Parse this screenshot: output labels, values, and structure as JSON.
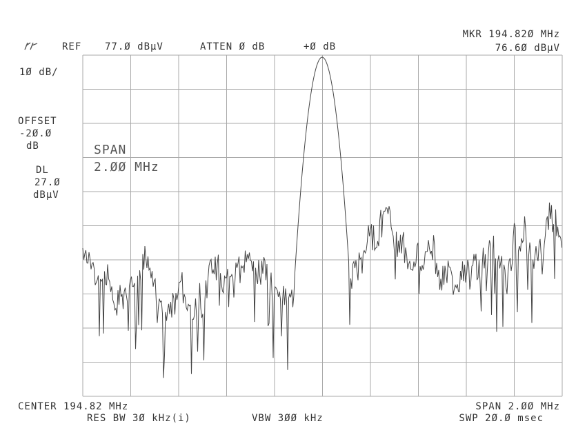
{
  "header": {
    "ref": "REF",
    "ref_level": "77.Ø dBµV",
    "atten": "ATTEN Ø dB",
    "offset_db": "+Ø dB",
    "marker": "MKR 194.82Ø MHz",
    "marker_level": "76.6Ø dBµV"
  },
  "left": {
    "scale": "1Ø dB/",
    "offset_label": "OFFSET",
    "offset_value": "-2Ø.Ø",
    "offset_unit": "dB",
    "dl_label": "DL",
    "dl_value": "27.Ø",
    "dl_unit": "dBµV"
  },
  "annotation": {
    "span_label": "SPAN",
    "span_value": "2.ØØ MHz"
  },
  "footer": {
    "center": "CENTER 194.82 MHz",
    "span": "SPAN 2.ØØ MHz",
    "res_bw": "RES BW 3Ø kHz(i)",
    "vbw": "VBW 3ØØ kHz",
    "sweep": "SWP 2Ø.Ø msec"
  }
}
